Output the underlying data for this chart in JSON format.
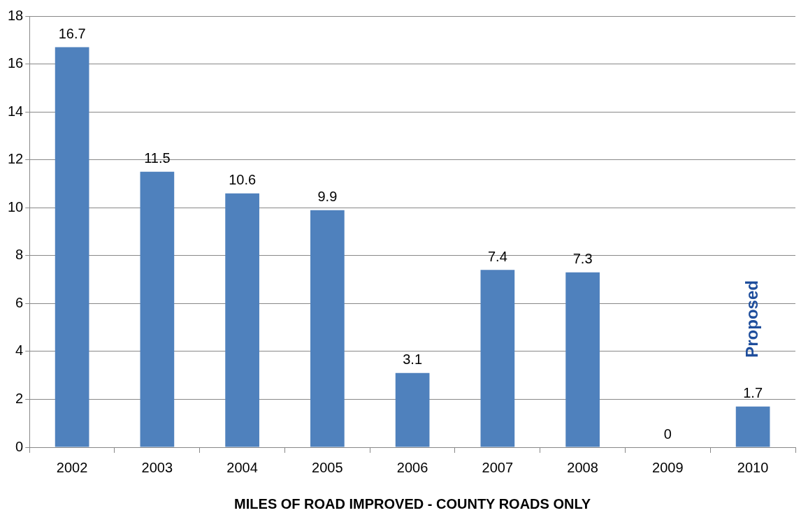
{
  "chart_data": {
    "type": "bar",
    "xlabel": "MILES OF ROAD IMPROVED - COUNTY ROADS ONLY",
    "categories": [
      "2002",
      "2003",
      "2004",
      "2005",
      "2006",
      "2007",
      "2008",
      "2009",
      "2010"
    ],
    "values": [
      16.7,
      11.5,
      10.6,
      9.9,
      3.1,
      7.4,
      7.3,
      0,
      1.7
    ],
    "color": "#4f81bd",
    "ylim": [
      0,
      18
    ],
    "yticks": [
      0,
      2,
      4,
      6,
      8,
      10,
      12,
      14,
      16,
      18
    ],
    "grid": "y",
    "data_labels": true,
    "legend": false,
    "annotations": [
      "Proposed"
    ]
  }
}
